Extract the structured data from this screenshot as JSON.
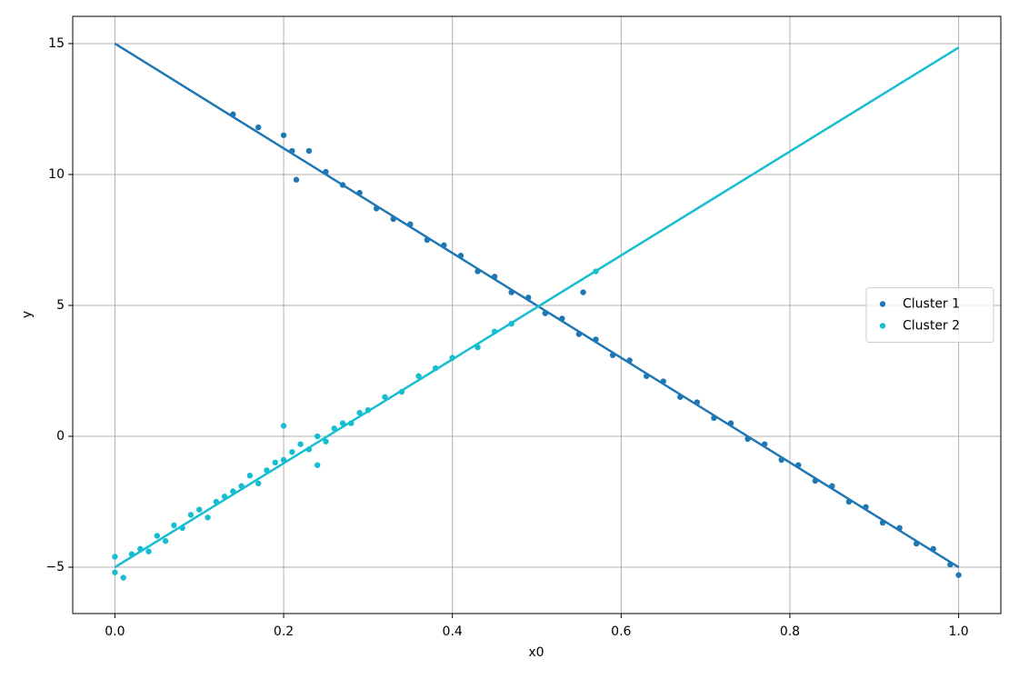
{
  "chart_data": {
    "type": "scatter",
    "x_label": "x0",
    "y_label": "y",
    "xlim": [
      -0.05,
      1.05
    ],
    "ylim": [
      -6.77,
      16.04
    ],
    "xticks": [
      {
        "value": 0,
        "label": "0.0"
      },
      {
        "value": 0.2,
        "label": "0.2"
      },
      {
        "value": 0.4,
        "label": "0.4"
      },
      {
        "value": 0.6,
        "label": "0.6"
      },
      {
        "value": 0.8,
        "label": "0.8"
      },
      {
        "value": 1,
        "label": "1.0"
      }
    ],
    "yticks": [
      {
        "value": -5,
        "label": "−5"
      },
      0,
      5,
      10,
      15
    ],
    "grid": true,
    "legend": "right",
    "series": [
      {
        "name": "Cluster 1",
        "color": "#1f77b4",
        "x": [
          0.14,
          0.17,
          0.2,
          0.21,
          0.215,
          0.23,
          0.25,
          0.27,
          0.29,
          0.31,
          0.33,
          0.35,
          0.37,
          0.39,
          0.41,
          0.43,
          0.45,
          0.47,
          0.49,
          0.51,
          0.53,
          0.555,
          0.55,
          0.57,
          0.59,
          0.61,
          0.63,
          0.65,
          0.67,
          0.69,
          0.71,
          0.73,
          0.75,
          0.77,
          0.79,
          0.81,
          0.83,
          0.85,
          0.87,
          0.89,
          0.91,
          0.93,
          0.95,
          0.97,
          0.99,
          1.0
        ],
        "values": [
          12.3,
          11.8,
          11.5,
          10.9,
          9.8,
          10.9,
          10.1,
          9.6,
          9.3,
          8.7,
          8.3,
          8.1,
          7.5,
          7.3,
          6.9,
          6.3,
          6.1,
          5.5,
          5.3,
          4.7,
          4.5,
          5.5,
          3.9,
          3.7,
          3.1,
          2.9,
          2.3,
          2.1,
          1.5,
          1.3,
          0.7,
          0.5,
          -0.1,
          -0.3,
          -0.9,
          -1.1,
          -1.7,
          -1.9,
          -2.5,
          -2.7,
          -3.3,
          -3.5,
          -4.1,
          -4.3,
          -4.9,
          -5.3
        ]
      },
      {
        "name": "Cluster 2",
        "color": "#17becf",
        "x": [
          0.0,
          0.0,
          0.01,
          0.02,
          0.03,
          0.04,
          0.05,
          0.06,
          0.07,
          0.08,
          0.09,
          0.1,
          0.11,
          0.12,
          0.13,
          0.14,
          0.15,
          0.16,
          0.17,
          0.18,
          0.19,
          0.2,
          0.2,
          0.21,
          0.22,
          0.23,
          0.24,
          0.24,
          0.25,
          0.26,
          0.27,
          0.28,
          0.29,
          0.3,
          0.32,
          0.34,
          0.36,
          0.38,
          0.4,
          0.43,
          0.45,
          0.47,
          0.57
        ],
        "values": [
          -5.2,
          -4.6,
          -5.4,
          -4.5,
          -4.3,
          -4.4,
          -3.8,
          -4.0,
          -3.4,
          -3.5,
          -3.0,
          -2.8,
          -3.1,
          -2.5,
          -2.3,
          -2.1,
          -1.9,
          -1.5,
          -1.8,
          -1.3,
          -1.0,
          -0.9,
          0.4,
          -0.6,
          -0.3,
          -0.5,
          0.0,
          -1.1,
          -0.2,
          0.3,
          0.5,
          0.5,
          0.9,
          1.0,
          1.5,
          1.7,
          2.3,
          2.6,
          3.0,
          3.4,
          4.0,
          4.3,
          6.3
        ]
      }
    ],
    "lines": [
      {
        "color": "#1f77b4",
        "x": [
          0,
          1
        ],
        "values": [
          15,
          -5
        ]
      },
      {
        "color": "#17becf",
        "x": [
          0,
          1
        ],
        "values": [
          -5,
          14.85
        ]
      }
    ]
  }
}
